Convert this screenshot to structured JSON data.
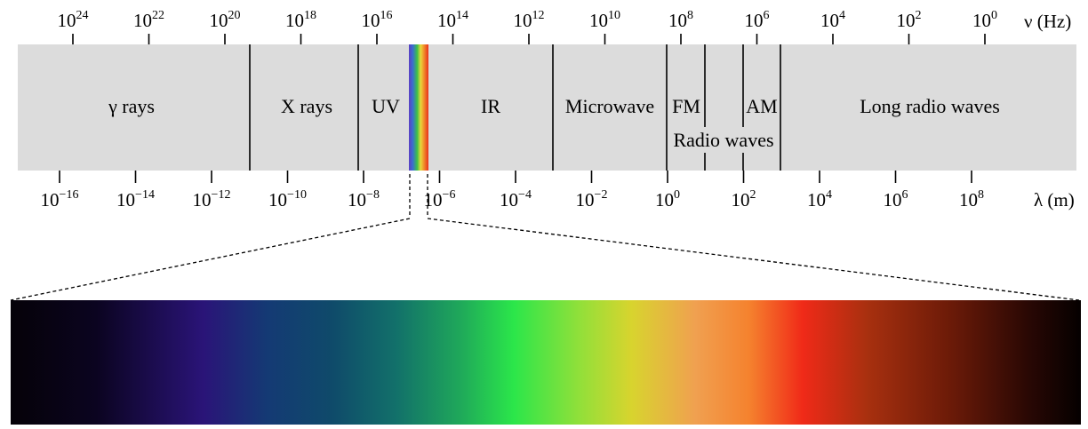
{
  "frequency_axis": {
    "unit_label": "ν (Hz)",
    "ticks": [
      {
        "base": "10",
        "exp": "24"
      },
      {
        "base": "10",
        "exp": "22"
      },
      {
        "base": "10",
        "exp": "20"
      },
      {
        "base": "10",
        "exp": "18"
      },
      {
        "base": "10",
        "exp": "16"
      },
      {
        "base": "10",
        "exp": "14"
      },
      {
        "base": "10",
        "exp": "12"
      },
      {
        "base": "10",
        "exp": "10"
      },
      {
        "base": "10",
        "exp": "8"
      },
      {
        "base": "10",
        "exp": "6"
      },
      {
        "base": "10",
        "exp": "4"
      },
      {
        "base": "10",
        "exp": "2"
      },
      {
        "base": "10",
        "exp": "0"
      }
    ]
  },
  "wavelength_axis": {
    "unit_label": "λ (m)",
    "ticks": [
      {
        "base": "10",
        "exp": "−16"
      },
      {
        "base": "10",
        "exp": "−14"
      },
      {
        "base": "10",
        "exp": "−12"
      },
      {
        "base": "10",
        "exp": "−10"
      },
      {
        "base": "10",
        "exp": "−8"
      },
      {
        "base": "10",
        "exp": "−6"
      },
      {
        "base": "10",
        "exp": "−4"
      },
      {
        "base": "10",
        "exp": "−2"
      },
      {
        "base": "10",
        "exp": "0"
      },
      {
        "base": "10",
        "exp": "2"
      },
      {
        "base": "10",
        "exp": "4"
      },
      {
        "base": "10",
        "exp": "6"
      },
      {
        "base": "10",
        "exp": "8"
      }
    ]
  },
  "bands": {
    "gamma": "γ rays",
    "xray": "X rays",
    "uv": "UV",
    "ir": "IR",
    "microwave": "Microwave",
    "fm": "FM",
    "am": "AM",
    "radio": "Radio waves",
    "long_radio": "Long radio waves"
  },
  "colors": {
    "band_background": "#dcdcdc",
    "visible_strip": [
      "#5b3fc4",
      "#3a6fd1",
      "#3bbf4a",
      "#e8d83a",
      "#f08a2a",
      "#e8301c"
    ],
    "spectrum": [
      "#050208",
      "#0b0420",
      "#2a1478",
      "#0f3d66",
      "#12706a",
      "#1fa85a",
      "#2be64a",
      "#8fe03a",
      "#d8d42e",
      "#f0a050",
      "#f5822e",
      "#f02a18",
      "#a8300f",
      "#6a1a08",
      "#2a0804",
      "#050000"
    ]
  }
}
